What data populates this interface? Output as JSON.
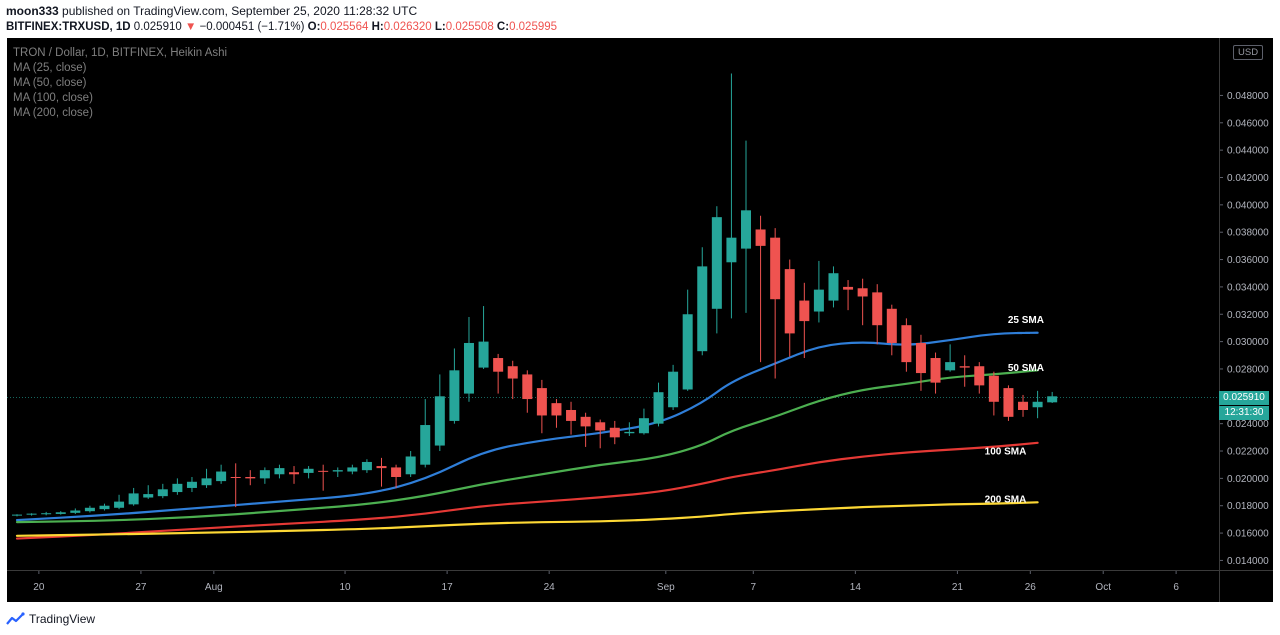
{
  "header": {
    "line1_user": "moon333",
    "line1_text": " published on TradingView.com, September 25, 2020 11:28:32 UTC",
    "symbol": "BITFINEX:TRXUSD, 1D",
    "last": "0.025910",
    "change_arrow": "▼",
    "change": "−0.000451 (−1.71%)",
    "o_label": "O:",
    "o": "0.025564",
    "h_label": "H:",
    "h": "0.026320",
    "l_label": "L:",
    "l": "0.025508",
    "c_label": "C:",
    "c": "0.025995"
  },
  "legend": {
    "title": "TRON / Dollar, 1D, BITFINEX, Heikin Ashi",
    "ma1": "MA (25, close)",
    "ma2": "MA (50, close)",
    "ma3": "MA (100, close)",
    "ma4": "MA (200, close)"
  },
  "currency_badge": "USD",
  "price_tag": {
    "price": "0.025910",
    "countdown": "12:31:30"
  },
  "footer": {
    "brand": "TradingView"
  },
  "colors": {
    "up": "#26a69a",
    "down": "#ef5350",
    "sma25": "#2f7ed8",
    "sma50": "#4caf50",
    "sma100": "#e53935",
    "sma200": "#fdd835",
    "background": "#000000"
  },
  "chart_data": {
    "type": "candlestick",
    "ylim": [
      0.0133,
      0.0522
    ],
    "y_ticks": [
      "0.014000",
      "0.016000",
      "0.018000",
      "0.020000",
      "0.022000",
      "0.024000",
      "0.026000",
      "0.028000",
      "0.030000",
      "0.032000",
      "0.034000",
      "0.036000",
      "0.038000",
      "0.040000",
      "0.042000",
      "0.044000",
      "0.046000",
      "0.048000"
    ],
    "x_ticks": [
      {
        "label": "20",
        "index": 1.5
      },
      {
        "label": "27",
        "index": 8.5
      },
      {
        "label": "Aug",
        "index": 13.5
      },
      {
        "label": "10",
        "index": 22.5
      },
      {
        "label": "17",
        "index": 29.5
      },
      {
        "label": "24",
        "index": 36.5
      },
      {
        "label": "Sep",
        "index": 44.5
      },
      {
        "label": "7",
        "index": 50.5
      },
      {
        "label": "14",
        "index": 57.5
      },
      {
        "label": "21",
        "index": 64.5
      },
      {
        "label": "26",
        "index": 69.5
      },
      {
        "label": "Oct",
        "index": 74.5
      },
      {
        "label": "6",
        "index": 79.5
      }
    ],
    "candles": [
      [
        0.0173,
        0.01735,
        0.01738,
        0.01722
      ],
      [
        0.01735,
        0.01742,
        0.01745,
        0.01728
      ],
      [
        0.01738,
        0.01745,
        0.01755,
        0.0173
      ],
      [
        0.0174,
        0.01752,
        0.0176,
        0.01735
      ],
      [
        0.01748,
        0.01765,
        0.0178,
        0.0174
      ],
      [
        0.0176,
        0.01785,
        0.018,
        0.0175
      ],
      [
        0.01775,
        0.018,
        0.01815,
        0.01765
      ],
      [
        0.01785,
        0.0183,
        0.0188,
        0.01775
      ],
      [
        0.0181,
        0.0189,
        0.0193,
        0.018
      ],
      [
        0.0186,
        0.01885,
        0.0195,
        0.0185
      ],
      [
        0.0187,
        0.0192,
        0.0196,
        0.01855
      ],
      [
        0.019,
        0.0196,
        0.02,
        0.0188
      ],
      [
        0.0193,
        0.01975,
        0.0201,
        0.019
      ],
      [
        0.0195,
        0.02,
        0.0207,
        0.0193
      ],
      [
        0.0198,
        0.0205,
        0.021,
        0.0196
      ],
      [
        0.0201,
        0.02005,
        0.0211,
        0.0179
      ],
      [
        0.0201,
        0.02,
        0.0206,
        0.0195
      ],
      [
        0.02,
        0.0206,
        0.0208,
        0.0196
      ],
      [
        0.0203,
        0.02075,
        0.021,
        0.02
      ],
      [
        0.02045,
        0.0203,
        0.0209,
        0.0196
      ],
      [
        0.0204,
        0.0207,
        0.0209,
        0.02
      ],
      [
        0.02055,
        0.0205,
        0.021,
        0.0191
      ],
      [
        0.0205,
        0.0206,
        0.0208,
        0.0201
      ],
      [
        0.0205,
        0.0208,
        0.021,
        0.0203
      ],
      [
        0.0206,
        0.0212,
        0.0214,
        0.0204
      ],
      [
        0.0209,
        0.02075,
        0.0215,
        0.0194
      ],
      [
        0.0208,
        0.0201,
        0.021,
        0.0193
      ],
      [
        0.0203,
        0.0216,
        0.022,
        0.0201
      ],
      [
        0.021,
        0.0239,
        0.0258,
        0.0208
      ],
      [
        0.0224,
        0.026,
        0.0276,
        0.022
      ],
      [
        0.0242,
        0.0279,
        0.0295,
        0.024
      ],
      [
        0.0262,
        0.0299,
        0.0318,
        0.0256
      ],
      [
        0.0281,
        0.03,
        0.0326,
        0.028
      ],
      [
        0.0288,
        0.0278,
        0.0291,
        0.0262
      ],
      [
        0.0282,
        0.0273,
        0.0286,
        0.0258
      ],
      [
        0.0276,
        0.0258,
        0.0279,
        0.0248
      ],
      [
        0.0266,
        0.0246,
        0.0272,
        0.0233
      ],
      [
        0.0255,
        0.0246,
        0.0258,
        0.0237
      ],
      [
        0.025,
        0.0242,
        0.0256,
        0.0232
      ],
      [
        0.0245,
        0.0238,
        0.0248,
        0.0223
      ],
      [
        0.0241,
        0.0235,
        0.0243,
        0.0222
      ],
      [
        0.0237,
        0.023,
        0.0242,
        0.0225
      ],
      [
        0.0233,
        0.0234,
        0.0241,
        0.0231
      ],
      [
        0.0233,
        0.0244,
        0.0251,
        0.0232
      ],
      [
        0.024,
        0.0263,
        0.027,
        0.0238
      ],
      [
        0.0252,
        0.0278,
        0.0283,
        0.025
      ],
      [
        0.0265,
        0.032,
        0.0338,
        0.0264
      ],
      [
        0.0293,
        0.0355,
        0.0369,
        0.029
      ],
      [
        0.0324,
        0.0391,
        0.0399,
        0.0306
      ],
      [
        0.0358,
        0.0376,
        0.0496,
        0.0317
      ],
      [
        0.0368,
        0.0396,
        0.0447,
        0.0321
      ],
      [
        0.0382,
        0.037,
        0.0392,
        0.0285
      ],
      [
        0.0376,
        0.0331,
        0.0383,
        0.0273
      ],
      [
        0.0353,
        0.0306,
        0.036,
        0.0289
      ],
      [
        0.033,
        0.0315,
        0.0343,
        0.0288
      ],
      [
        0.0322,
        0.0338,
        0.0359,
        0.0314
      ],
      [
        0.033,
        0.035,
        0.0355,
        0.0325
      ],
      [
        0.034,
        0.0338,
        0.0345,
        0.0323
      ],
      [
        0.0339,
        0.0333,
        0.0346,
        0.0312
      ],
      [
        0.0336,
        0.0312,
        0.0342,
        0.0298
      ],
      [
        0.0324,
        0.0299,
        0.0327,
        0.029
      ],
      [
        0.0312,
        0.0285,
        0.0317,
        0.0278
      ],
      [
        0.0299,
        0.0277,
        0.0305,
        0.0264
      ],
      [
        0.0288,
        0.027,
        0.0292,
        0.0262
      ],
      [
        0.0279,
        0.0285,
        0.0298,
        0.0278
      ],
      [
        0.0282,
        0.0281,
        0.029,
        0.0267
      ],
      [
        0.0282,
        0.0268,
        0.0285,
        0.0262
      ],
      [
        0.0275,
        0.0256,
        0.0278,
        0.0246
      ],
      [
        0.0266,
        0.0245,
        0.0268,
        0.0242
      ],
      [
        0.0256,
        0.025,
        0.0261,
        0.0245
      ],
      [
        0.0252,
        0.0256,
        0.0264,
        0.0244
      ],
      [
        0.02556,
        0.026,
        0.02632,
        0.02551
      ]
    ],
    "series": [
      {
        "label": "25 SMA",
        "points": [
          [
            0,
            0.01695
          ],
          [
            6,
            0.0173
          ],
          [
            12,
            0.0178
          ],
          [
            18,
            0.0183
          ],
          [
            24,
            0.0188
          ],
          [
            28,
            0.0199
          ],
          [
            32,
            0.022
          ],
          [
            36,
            0.0228
          ],
          [
            40,
            0.0233
          ],
          [
            44,
            0.024
          ],
          [
            47,
            0.0255
          ],
          [
            49,
            0.0271
          ],
          [
            52,
            0.0284
          ],
          [
            55,
            0.0297
          ],
          [
            58,
            0.03
          ],
          [
            61,
            0.0297
          ],
          [
            64,
            0.0301
          ],
          [
            67,
            0.0306
          ],
          [
            70,
            0.03065
          ]
        ]
      },
      {
        "label": "50 SMA",
        "points": [
          [
            0,
            0.0168
          ],
          [
            6,
            0.0169
          ],
          [
            12,
            0.01715
          ],
          [
            18,
            0.0176
          ],
          [
            24,
            0.0181
          ],
          [
            28,
            0.0187
          ],
          [
            32,
            0.0196
          ],
          [
            36,
            0.0203
          ],
          [
            40,
            0.021
          ],
          [
            44,
            0.0215
          ],
          [
            47,
            0.0224
          ],
          [
            49,
            0.0235
          ],
          [
            52,
            0.0245
          ],
          [
            55,
            0.0257
          ],
          [
            58,
            0.0265
          ],
          [
            61,
            0.0269
          ],
          [
            64,
            0.0274
          ],
          [
            67,
            0.0276
          ],
          [
            70,
            0.0279
          ]
        ]
      },
      {
        "label": "100 SMA",
        "points": [
          [
            0,
            0.0156
          ],
          [
            6,
            0.0159
          ],
          [
            12,
            0.0163
          ],
          [
            18,
            0.01665
          ],
          [
            24,
            0.017
          ],
          [
            28,
            0.0174
          ],
          [
            32,
            0.018
          ],
          [
            36,
            0.0183
          ],
          [
            40,
            0.0186
          ],
          [
            44,
            0.019
          ],
          [
            47,
            0.0196
          ],
          [
            49,
            0.0201
          ],
          [
            52,
            0.0206
          ],
          [
            55,
            0.0212
          ],
          [
            58,
            0.0216
          ],
          [
            61,
            0.0219
          ],
          [
            64,
            0.0221
          ],
          [
            67,
            0.0223
          ],
          [
            70,
            0.0226
          ]
        ]
      },
      {
        "label": "200 SMA",
        "points": [
          [
            0,
            0.0158
          ],
          [
            6,
            0.0159
          ],
          [
            12,
            0.016
          ],
          [
            18,
            0.01615
          ],
          [
            24,
            0.0163
          ],
          [
            28,
            0.0165
          ],
          [
            32,
            0.0167
          ],
          [
            36,
            0.0168
          ],
          [
            40,
            0.01685
          ],
          [
            44,
            0.017
          ],
          [
            47,
            0.0172
          ],
          [
            49,
            0.0174
          ],
          [
            52,
            0.0176
          ],
          [
            55,
            0.01775
          ],
          [
            58,
            0.0179
          ],
          [
            61,
            0.018
          ],
          [
            64,
            0.0181
          ],
          [
            67,
            0.01815
          ],
          [
            70,
            0.01825
          ]
        ]
      }
    ],
    "last_price": 0.02591
  }
}
